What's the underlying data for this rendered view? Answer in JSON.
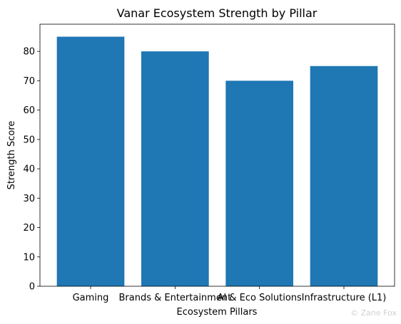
{
  "chart_data": {
    "type": "bar",
    "title": "Vanar Ecosystem Strength by Pillar",
    "xlabel": "Ecosystem Pillars",
    "ylabel": "Strength Score",
    "categories": [
      "Gaming",
      "Brands & Entertainment",
      "AI & Eco Solutions",
      "Infrastructure (L1)"
    ],
    "values": [
      85,
      80,
      70,
      75
    ],
    "yticks": [
      0,
      10,
      20,
      30,
      40,
      50,
      60,
      70,
      80
    ],
    "ylim": [
      0,
      89.25
    ],
    "bar_color": "#1f77b4",
    "grid": false,
    "legend": null
  },
  "watermark": "© Zane Fox"
}
